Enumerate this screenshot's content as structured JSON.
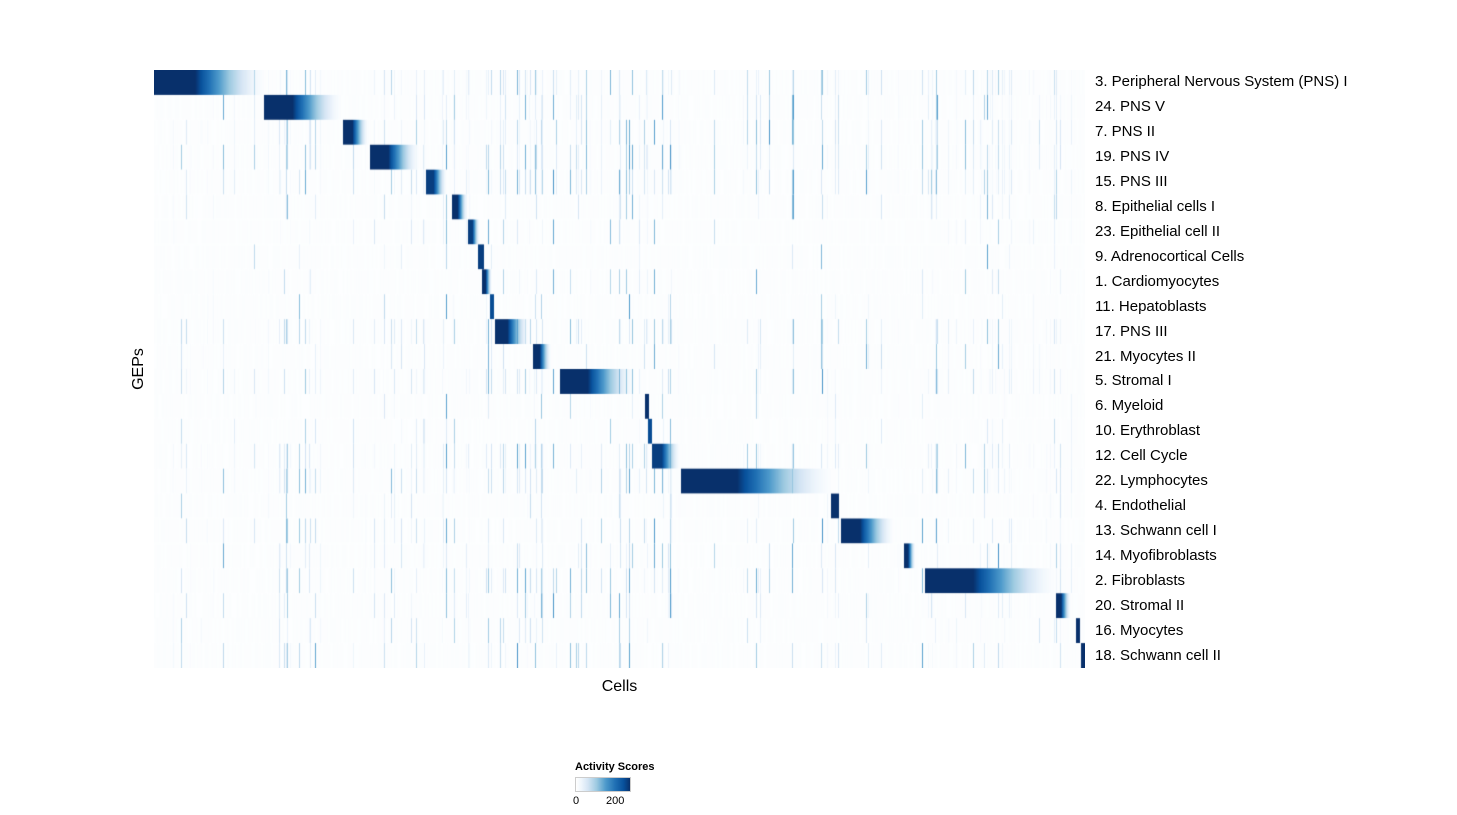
{
  "figure": {
    "background": "#ffffff"
  },
  "chart_data": {
    "type": "heatmap",
    "title": "",
    "xlabel": "Cells",
    "ylabel": "GEPs",
    "legend": {
      "title": "Activity Scores",
      "tick_low": "0",
      "tick_high": "200"
    },
    "value_range": [
      0,
      200
    ],
    "n_columns": 931,
    "noise_seed": 1337,
    "colormap_stops": [
      {
        "t": 0.0,
        "color": "#ffffff"
      },
      {
        "t": 0.1,
        "color": "#eff6fc"
      },
      {
        "t": 0.22,
        "color": "#d5e5f4"
      },
      {
        "t": 0.38,
        "color": "#9ecae1"
      },
      {
        "t": 0.55,
        "color": "#4e9acb"
      },
      {
        "t": 0.72,
        "color": "#2171b5"
      },
      {
        "t": 0.88,
        "color": "#08519c"
      },
      {
        "t": 1.0,
        "color": "#08306b"
      }
    ],
    "rows": [
      {
        "label": "3. Peripheral Nervous System (PNS) I",
        "block": [
          0.0,
          0.125
        ],
        "peak": 200,
        "noise": 0.9
      },
      {
        "label": "24. PNS V",
        "block": [
          0.118,
          0.205
        ],
        "peak": 200,
        "noise": 0.7
      },
      {
        "label": "7. PNS II",
        "block": [
          0.203,
          0.231
        ],
        "peak": 200,
        "noise": 0.8
      },
      {
        "label": "19. PNS IV",
        "block": [
          0.232,
          0.287
        ],
        "peak": 200,
        "noise": 0.9
      },
      {
        "label": "15. PNS III",
        "block": [
          0.292,
          0.315
        ],
        "peak": 190,
        "noise": 0.8
      },
      {
        "label": "8. Epithelial cells I",
        "block": [
          0.32,
          0.337
        ],
        "peak": 200,
        "noise": 0.3
      },
      {
        "label": "23. Epithelial cell II",
        "block": [
          0.337,
          0.35
        ],
        "peak": 190,
        "noise": 0.35
      },
      {
        "label": "9. Adrenocortical Cells",
        "block": [
          0.348,
          0.354
        ],
        "peak": 190,
        "noise": 0.15
      },
      {
        "label": "1. Cardiomyocytes",
        "block": [
          0.352,
          0.363
        ],
        "peak": 200,
        "noise": 0.25
      },
      {
        "label": "11. Hepatoblasts",
        "block": [
          0.36,
          0.365
        ],
        "peak": 180,
        "noise": 0.2
      },
      {
        "label": "17. PNS III",
        "block": [
          0.366,
          0.404
        ],
        "peak": 200,
        "noise": 0.8
      },
      {
        "label": "21. Myocytes II",
        "block": [
          0.407,
          0.427
        ],
        "peak": 200,
        "noise": 0.5
      },
      {
        "label": "5. Stromal I",
        "block": [
          0.436,
          0.52
        ],
        "peak": 200,
        "noise": 0.7
      },
      {
        "label": "6. Myeloid",
        "block": [
          0.527,
          0.531
        ],
        "peak": 200,
        "noise": 0.2
      },
      {
        "label": "10. Erythroblast",
        "block": [
          0.53,
          0.534
        ],
        "peak": 180,
        "noise": 0.25
      },
      {
        "label": "12. Cell Cycle",
        "block": [
          0.534,
          0.566
        ],
        "peak": 190,
        "noise": 0.9
      },
      {
        "label": "22. Lymphocytes",
        "block": [
          0.566,
          0.737
        ],
        "peak": 200,
        "noise": 0.8
      },
      {
        "label": "4. Endothelial",
        "block": [
          0.727,
          0.735
        ],
        "peak": 200,
        "noise": 0.3
      },
      {
        "label": "13. Schwann cell I",
        "block": [
          0.737,
          0.797
        ],
        "peak": 200,
        "noise": 0.6
      },
      {
        "label": "14. Myofibroblasts",
        "block": [
          0.805,
          0.818
        ],
        "peak": 200,
        "noise": 0.4
      },
      {
        "label": "2. Fibroblasts",
        "block": [
          0.828,
          0.975
        ],
        "peak": 200,
        "noise": 0.7
      },
      {
        "label": "20. Stromal II",
        "block": [
          0.968,
          0.985
        ],
        "peak": 200,
        "noise": 0.5
      },
      {
        "label": "16. Myocytes",
        "block": [
          0.99,
          0.994
        ],
        "peak": 200,
        "noise": 0.4
      },
      {
        "label": "18. Schwann cell II",
        "block": [
          0.995,
          1.0
        ],
        "peak": 200,
        "noise": 0.5
      }
    ]
  }
}
